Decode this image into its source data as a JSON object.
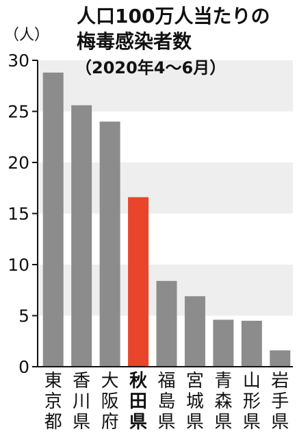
{
  "chart_data": {
    "type": "bar",
    "title_line1": "人口100万人当たりの",
    "title_line2": "梅毒感染者数",
    "subtitle": "（2020年4～6月）",
    "unit_label": "（人）",
    "categories": [
      "東京都",
      "香川県",
      "大阪府",
      "秋田県",
      "福島県",
      "宮城県",
      "青森県",
      "山形県",
      "岩手県"
    ],
    "values": [
      28.8,
      25.6,
      24.0,
      16.6,
      8.4,
      6.9,
      4.6,
      4.5,
      1.6
    ],
    "highlight_category": "秋田県",
    "y_ticks": [
      "0",
      "5",
      "10",
      "15",
      "20",
      "25",
      "30"
    ],
    "ylim": [
      0,
      30
    ],
    "grid": "alternating bands",
    "colors": {
      "bar": "#8c8c8c",
      "highlight": "#e8452a",
      "band": "#eeeeee",
      "axis": "#111111"
    }
  }
}
